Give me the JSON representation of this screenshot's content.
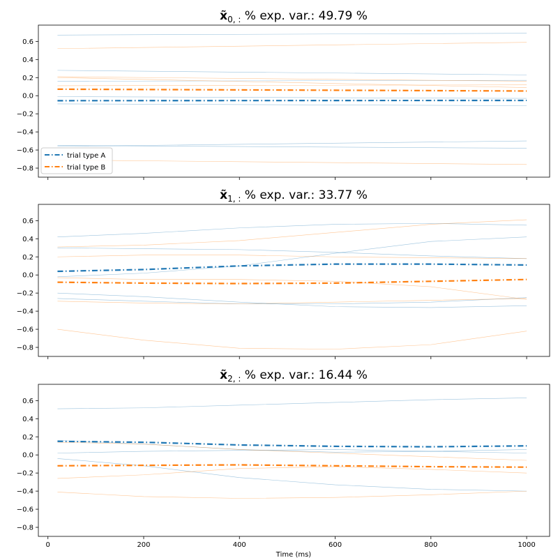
{
  "chart_data": [
    {
      "type": "line",
      "title": "x̃_{0, :} % exp. var.: 49.79 %",
      "title_symbol": "x̃",
      "title_sub": "0, :",
      "title_rest": " % exp. var.: 49.79 %",
      "xlim": [
        -20,
        1048
      ],
      "ylim": [
        -0.9,
        0.78
      ],
      "xticks": [
        0,
        200,
        400,
        600,
        800,
        1000
      ],
      "xtick_labels": [
        "",
        "",
        "",
        "",
        "",
        ""
      ],
      "yticks": [
        0.6,
        0.4,
        0.2,
        0.0,
        -0.2,
        -0.4,
        -0.6,
        -0.8
      ],
      "ytick_labels": [
        "0.6",
        "0.4",
        "0.2",
        "0.0",
        "−0.2",
        "−0.4",
        "−0.6",
        "−0.8"
      ],
      "legend": {
        "position": "lower-left",
        "entries": [
          "trial type A",
          "trial type B"
        ]
      },
      "x": [
        20,
        1000
      ],
      "series": [
        {
          "name": "trial type A",
          "color": "#1f77b4",
          "values": [
            -0.055,
            -0.052
          ]
        },
        {
          "name": "trial type B",
          "color": "#ff7f0e",
          "values": [
            0.072,
            0.052
          ]
        }
      ],
      "trials": [
        {
          "color": "#1f77b4",
          "values": [
            0.67,
            0.69
          ]
        },
        {
          "color": "#1f77b4",
          "values": [
            0.28,
            0.23
          ]
        },
        {
          "color": "#1f77b4",
          "values": [
            0.16,
            0.17
          ]
        },
        {
          "color": "#1f77b4",
          "values": [
            -0.01,
            -0.03
          ]
        },
        {
          "color": "#1f77b4",
          "values": [
            -0.09,
            -0.11
          ]
        },
        {
          "color": "#1f77b4",
          "values": [
            -0.55,
            -0.58
          ]
        },
        {
          "color": "#1f77b4",
          "values": [
            -0.56,
            -0.5
          ]
        },
        {
          "color": "#ff7f0e",
          "values": [
            0.52,
            0.59
          ]
        },
        {
          "color": "#ff7f0e",
          "values": [
            0.21,
            0.16
          ]
        },
        {
          "color": "#ff7f0e",
          "values": [
            0.2,
            0.09
          ]
        },
        {
          "color": "#ff7f0e",
          "values": [
            0.11,
            0.12
          ]
        },
        {
          "color": "#ff7f0e",
          "values": [
            -0.71,
            -0.76
          ]
        }
      ]
    },
    {
      "type": "line",
      "title": "x̃_{1, :} % exp. var.: 33.77 %",
      "title_symbol": "x̃",
      "title_sub": "1, :",
      "title_rest": " % exp. var.: 33.77 %",
      "xlim": [
        -20,
        1048
      ],
      "ylim": [
        -0.9,
        0.78
      ],
      "xticks": [
        0,
        200,
        400,
        600,
        800,
        1000
      ],
      "xtick_labels": [
        "",
        "",
        "",
        "",
        "",
        ""
      ],
      "yticks": [
        0.6,
        0.4,
        0.2,
        0.0,
        -0.2,
        -0.4,
        -0.6,
        -0.8
      ],
      "ytick_labels": [
        "0.6",
        "0.4",
        "0.2",
        "0.0",
        "−0.2",
        "−0.4",
        "−0.6",
        "−0.8"
      ],
      "x": [
        20,
        200,
        400,
        600,
        800,
        1000
      ],
      "series": [
        {
          "name": "trial type A",
          "color": "#1f77b4",
          "values": [
            0.04,
            0.06,
            0.1,
            0.12,
            0.12,
            0.11
          ]
        },
        {
          "name": "trial type B",
          "color": "#ff7f0e",
          "values": [
            -0.08,
            -0.09,
            -0.095,
            -0.09,
            -0.07,
            -0.05
          ]
        }
      ],
      "trials": [
        {
          "color": "#1f77b4",
          "values": [
            0.42,
            0.46,
            0.52,
            0.56,
            0.57,
            0.55
          ]
        },
        {
          "color": "#1f77b4",
          "values": [
            0.3,
            0.29,
            0.28,
            0.25,
            0.21,
            0.18
          ]
        },
        {
          "color": "#1f77b4",
          "values": [
            -0.02,
            0.02,
            0.1,
            0.24,
            0.37,
            0.42
          ]
        },
        {
          "color": "#1f77b4",
          "values": [
            -0.2,
            -0.24,
            -0.3,
            -0.35,
            -0.36,
            -0.34
          ]
        },
        {
          "color": "#1f77b4",
          "values": [
            -0.26,
            -0.29,
            -0.32,
            -0.32,
            -0.3,
            -0.25
          ]
        },
        {
          "color": "#ff7f0e",
          "values": [
            0.31,
            0.33,
            0.38,
            0.47,
            0.56,
            0.61
          ]
        },
        {
          "color": "#ff7f0e",
          "values": [
            0.2,
            0.22,
            0.22,
            0.2,
            0.19,
            0.18
          ]
        },
        {
          "color": "#ff7f0e",
          "values": [
            -0.03,
            -0.05,
            -0.05,
            -0.07,
            -0.13,
            -0.27
          ]
        },
        {
          "color": "#ff7f0e",
          "values": [
            -0.29,
            -0.31,
            -0.32,
            -0.3,
            -0.28,
            -0.26
          ]
        },
        {
          "color": "#ff7f0e",
          "values": [
            -0.6,
            -0.72,
            -0.81,
            -0.82,
            -0.77,
            -0.62
          ]
        }
      ]
    },
    {
      "type": "line",
      "title": "x̃_{2, :} % exp. var.: 16.44 %",
      "title_symbol": "x̃",
      "title_sub": "2, :",
      "title_rest": " % exp. var.: 16.44 %",
      "xlim": [
        -20,
        1048
      ],
      "ylim": [
        -0.9,
        0.78
      ],
      "xticks": [
        0,
        200,
        400,
        600,
        800,
        1000
      ],
      "xtick_labels": [
        "0",
        "200",
        "400",
        "600",
        "800",
        "1000"
      ],
      "yticks": [
        0.6,
        0.4,
        0.2,
        0.0,
        -0.2,
        -0.4,
        -0.6,
        -0.8
      ],
      "ytick_labels": [
        "0.6",
        "0.4",
        "0.2",
        "0.0",
        "−0.2",
        "−0.4",
        "−0.6",
        "−0.8"
      ],
      "xlabel": "Time (ms)",
      "x": [
        20,
        200,
        400,
        600,
        800,
        1000
      ],
      "series": [
        {
          "name": "trial type A",
          "color": "#1f77b4",
          "values": [
            0.15,
            0.14,
            0.11,
            0.095,
            0.09,
            0.1
          ]
        },
        {
          "name": "trial type B",
          "color": "#ff7f0e",
          "values": [
            -0.12,
            -0.115,
            -0.11,
            -0.12,
            -0.13,
            -0.135
          ]
        }
      ],
      "trials": [
        {
          "color": "#1f77b4",
          "values": [
            0.51,
            0.52,
            0.55,
            0.58,
            0.61,
            0.63
          ]
        },
        {
          "color": "#1f77b4",
          "values": [
            0.16,
            0.12,
            0.06,
            0.03,
            0.04,
            0.06
          ]
        },
        {
          "color": "#1f77b4",
          "values": [
            0.02,
            0.04,
            0.05,
            0.06,
            0.04,
            0.02
          ]
        },
        {
          "color": "#1f77b4",
          "values": [
            -0.04,
            -0.12,
            -0.25,
            -0.33,
            -0.38,
            -0.4
          ]
        },
        {
          "color": "#ff7f0e",
          "values": [
            0.14,
            0.12,
            0.06,
            0.02,
            -0.02,
            -0.06
          ]
        },
        {
          "color": "#ff7f0e",
          "values": [
            -0.26,
            -0.22,
            -0.15,
            -0.13,
            -0.16,
            -0.2
          ]
        },
        {
          "color": "#ff7f0e",
          "values": [
            -0.41,
            -0.46,
            -0.48,
            -0.47,
            -0.44,
            -0.4
          ]
        }
      ]
    }
  ]
}
